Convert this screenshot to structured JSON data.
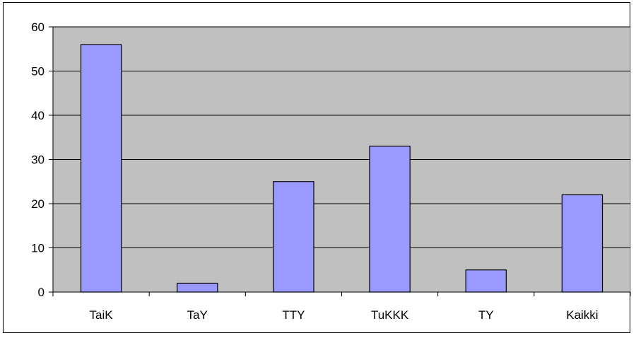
{
  "chart_data": {
    "type": "bar",
    "title": "",
    "xlabel": "",
    "ylabel": "",
    "categories": [
      "TaiK",
      "TaY",
      "TTY",
      "TuKKK",
      "TY",
      "Kaikki"
    ],
    "values": [
      56,
      2,
      25,
      33,
      5,
      22
    ],
    "ylim": [
      0,
      60
    ],
    "yticks": [
      0,
      10,
      20,
      30,
      40,
      50,
      60
    ],
    "grid": "horizontal",
    "legend": "none",
    "colors": {
      "plot_background": "#c0c0c0",
      "bar_fill": "#9999ff",
      "bar_stroke": "#000000",
      "gridline": "#000000"
    }
  }
}
